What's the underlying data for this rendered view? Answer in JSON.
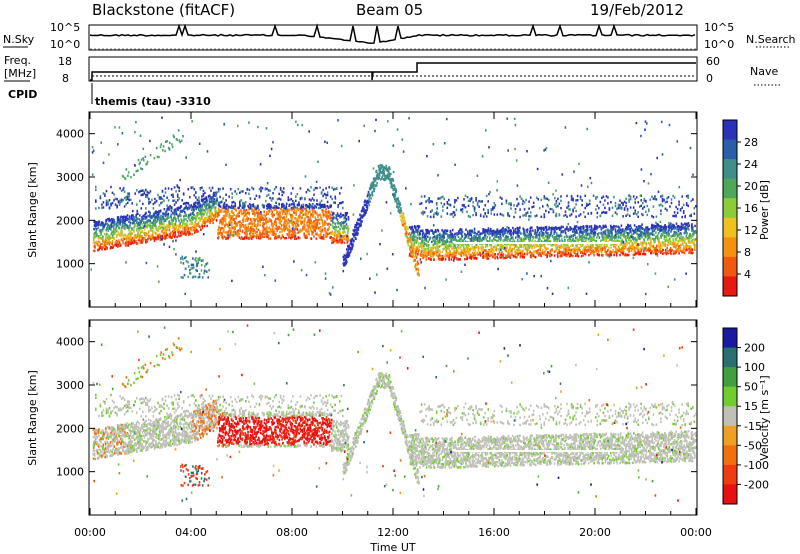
{
  "header": {
    "station": "Blackstone (fitACF)",
    "beam": "Beam 05",
    "date": "19/Feb/2012"
  },
  "noise_panel": {
    "left_label": "N.Sky",
    "right_label": "N.Search",
    "left_ticks": [
      "10^5",
      "10^0"
    ],
    "right_ticks": [
      "10^5",
      "10^0"
    ]
  },
  "freq_panel": {
    "left_label_1": "Freq.",
    "left_label_2": "[MHz]",
    "cpid_label": "CPID",
    "left_ticks": [
      "18",
      "8"
    ],
    "right_label": "Nave",
    "right_ticks": [
      "60",
      "0"
    ],
    "cpid_text": "themis (tau) -3310"
  },
  "colors": {
    "power_scale": [
      "#2a33b8",
      "#2a5ea8",
      "#3f8e8a",
      "#4fa85a",
      "#8ccc3a",
      "#f0c020",
      "#f59010",
      "#f05a10",
      "#e81a10"
    ],
    "velocity_scale": [
      "#1a1aa0",
      "#2a7070",
      "#40a040",
      "#70cc30",
      "#c0c0b8",
      "#f0a020",
      "#f07010",
      "#f03a10",
      "#e81010"
    ]
  },
  "chart_data": [
    {
      "type": "heatmap",
      "title": "Power",
      "ylabel": "Slant Range [km]",
      "ylim": [
        0,
        4500
      ],
      "yticks": [
        "4000",
        "3000",
        "2000",
        "1000"
      ],
      "xticks": [
        "00:00",
        "04:00",
        "08:00",
        "12:00",
        "16:00",
        "20:00",
        "00:00"
      ],
      "colorbar_label": "Power [dB]",
      "colorbar_ticks": [
        "28",
        "24",
        "20",
        "16",
        "12",
        "8",
        "4"
      ]
    },
    {
      "type": "heatmap",
      "title": "Velocity",
      "ylabel": "Slant Range [km]",
      "ylim": [
        0,
        4500
      ],
      "yticks": [
        "4000",
        "3000",
        "2000",
        "1000"
      ],
      "xticks": [
        "00:00",
        "04:00",
        "08:00",
        "12:00",
        "16:00",
        "20:00",
        "00:00"
      ],
      "xlabel": "Time UT",
      "colorbar_label": "Velocity [m s⁻¹]",
      "colorbar_ticks": [
        "200",
        "100",
        "50",
        "15",
        "-15",
        "-50",
        "-100",
        "-200"
      ]
    }
  ]
}
